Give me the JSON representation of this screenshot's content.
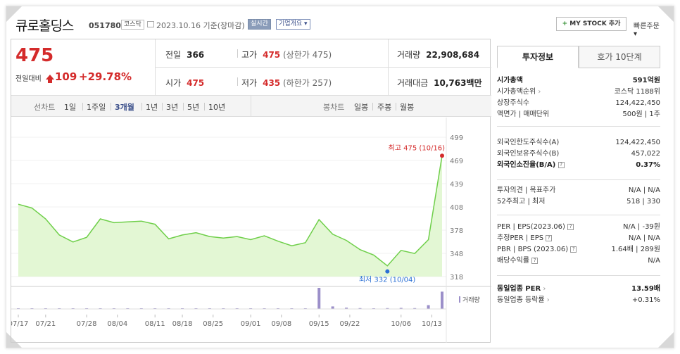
{
  "header": {
    "stock_name": "큐로홀딩스",
    "stock_code": "051780",
    "market_badge": "코스닥",
    "date_text": "2023.10.16 기준(장마감)",
    "live_button": "실시간",
    "overview_button": "기업개요",
    "mystock_button": "MY STOCK 추가",
    "quick_order": "빠른주문"
  },
  "price": {
    "current": "475",
    "diff_label": "전일대비",
    "diff_value": "109",
    "diff_pct": "+29.78%"
  },
  "summary": {
    "prev_label": "전일",
    "prev_value": "366",
    "high_label": "고가",
    "high_value": "475",
    "high_sub": "(상한가 475)",
    "volume_label": "거래량",
    "volume_value": "22,908,684",
    "open_label": "시가",
    "open_value": "475",
    "low_label": "저가",
    "low_value": "435",
    "low_sub": "(하한가 257)",
    "amount_label": "거래대금",
    "amount_value": "10,763",
    "amount_unit": "백만"
  },
  "chart_tabs": {
    "line_label": "선차트",
    "periods": [
      "1일",
      "1주일",
      "3개월",
      "1년",
      "3년",
      "5년",
      "10년"
    ],
    "active_period": "3개월",
    "candle_label": "봉차트",
    "candles": [
      "일봉",
      "주봉",
      "월봉"
    ]
  },
  "chart_data": {
    "type": "area",
    "x": [
      "07/17",
      "07/19",
      "07/21",
      "07/24",
      "07/26",
      "07/28",
      "08/01",
      "08/03",
      "08/07",
      "08/09",
      "08/11",
      "08/16",
      "08/18",
      "08/22",
      "08/24",
      "08/28",
      "08/30",
      "09/01",
      "09/05",
      "09/07",
      "09/11",
      "09/13",
      "09/15",
      "09/19",
      "09/21",
      "09/25",
      "09/27",
      "10/04",
      "10/06",
      "10/10",
      "10/12",
      "10/16"
    ],
    "values": [
      412,
      407,
      393,
      372,
      363,
      369,
      393,
      388,
      389,
      390,
      386,
      367,
      372,
      375,
      370,
      368,
      370,
      366,
      371,
      364,
      358,
      362,
      392,
      373,
      365,
      353,
      346,
      332,
      352,
      348,
      366,
      475
    ],
    "volume": [
      0.02,
      0.01,
      0.02,
      0.03,
      0.02,
      0.02,
      0.03,
      0.02,
      0.02,
      0.02,
      0.01,
      0.02,
      0.02,
      0.02,
      0.02,
      0.01,
      0.02,
      0.02,
      0.02,
      0.01,
      0.02,
      0.01,
      1.0,
      0.12,
      0.06,
      0.04,
      0.03,
      0.04,
      0.05,
      0.04,
      0.18,
      0.82
    ],
    "yticks": [
      "499",
      "469",
      "439",
      "408",
      "378",
      "348",
      "318"
    ],
    "ylim": [
      318,
      499
    ],
    "xticks": [
      "07/17",
      "07/21",
      "07/28",
      "08/04",
      "08/11",
      "08/18",
      "08/25",
      "09/01",
      "09/08",
      "09/15",
      "09/22",
      "10/06",
      "10/13"
    ],
    "high_annotation": "최고 475 (10/16)",
    "low_annotation": "최저 332 (10/04)",
    "volume_legend": "거래량",
    "colors": {
      "line": "#6fcf4a",
      "fill": "#e3f7d4",
      "high_dot": "#d42b2b",
      "low_dot": "#2a6fd4",
      "volume": "#9b8fc9"
    }
  },
  "right_panel": {
    "tabs": [
      "투자정보",
      "호가 10단계"
    ],
    "active_tab": "투자정보",
    "sec1": [
      {
        "label": "시가총액",
        "value": "591억원"
      },
      {
        "label": "시가총액순위",
        "value": "코스닥 1188위"
      },
      {
        "label": "상장주식수",
        "value": "124,422,450"
      },
      {
        "label": "액면가 | 매매단위",
        "value": "500원 | 1주"
      }
    ],
    "sec2": [
      {
        "label": "외국인한도주식수(A)",
        "value": "124,422,450"
      },
      {
        "label": "외국인보유주식수(B)",
        "value": "457,022"
      },
      {
        "label": "외국인소진율(B/A)",
        "value": "0.37%"
      }
    ],
    "sec3": [
      {
        "label": "투자의견 | 목표주가",
        "value": "N/A | N/A"
      },
      {
        "label": "52주최고 | 최저",
        "value": "518 | 330"
      }
    ],
    "sec4": [
      {
        "label": "PER | EPS(2023.06)",
        "value": "N/A | -39원"
      },
      {
        "label": "추정PER | EPS",
        "value": "N/A | N/A"
      },
      {
        "label": "PBR | BPS (2023.06)",
        "value": "1.64배 | 289원"
      },
      {
        "label": "배당수익률",
        "value": "N/A"
      }
    ],
    "sec5": [
      {
        "label": "동일업종 PER",
        "value": "13.59배"
      },
      {
        "label": "동일업종 등락률",
        "value": "+0.31%"
      }
    ]
  }
}
